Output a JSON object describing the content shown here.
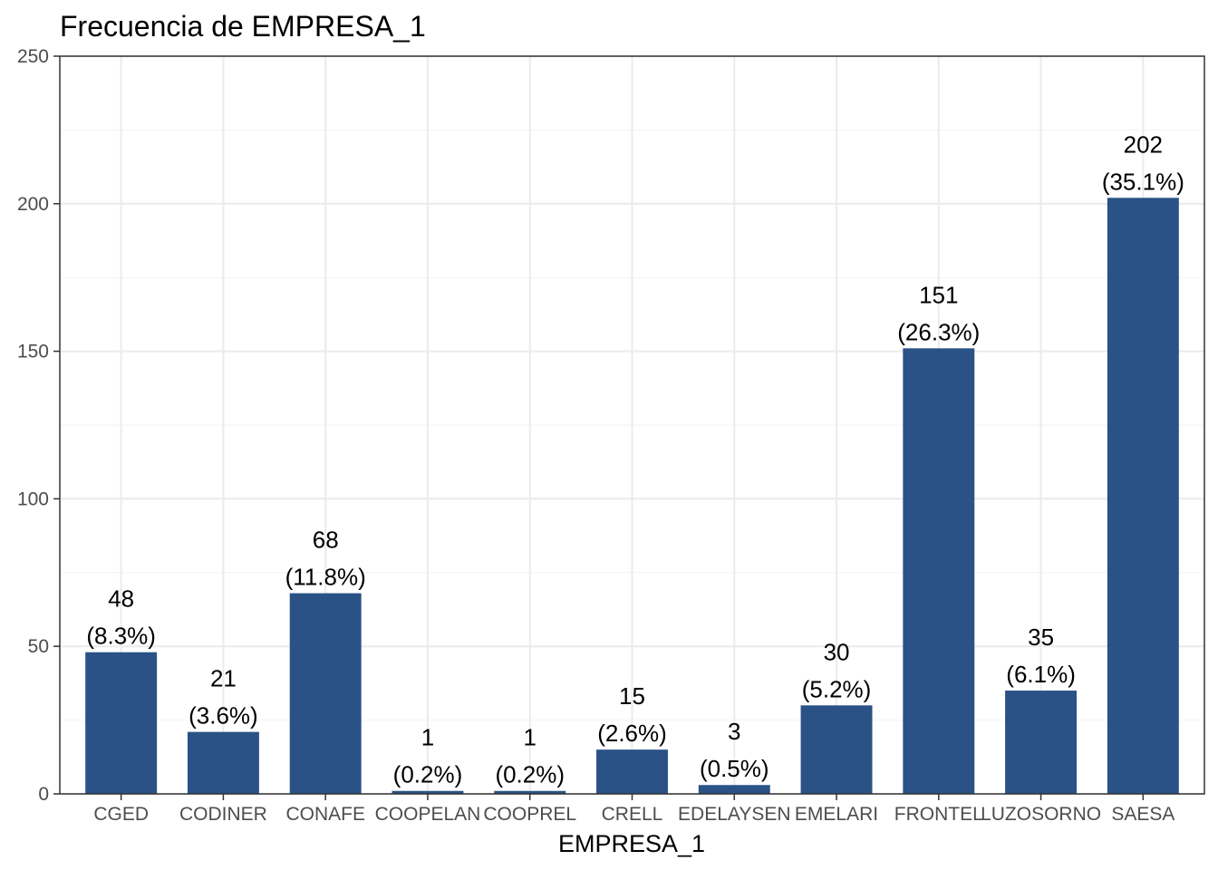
{
  "chart_data": {
    "type": "bar",
    "title": "Frecuencia de EMPRESA_1",
    "xlabel": "EMPRESA_1",
    "ylabel": "",
    "ylim": [
      0,
      250
    ],
    "yticks": [
      0,
      50,
      100,
      150,
      200,
      250
    ],
    "grid": true,
    "categories": [
      "CGED",
      "CODINER",
      "CONAFE",
      "COOPELAN",
      "COOPREL",
      "CRELL",
      "EDELAYSEN",
      "EMELARI",
      "FRONTEL",
      "LUZOSORNO",
      "SAESA"
    ],
    "values": [
      48,
      21,
      68,
      1,
      1,
      15,
      3,
      30,
      151,
      35,
      202
    ],
    "percent_labels": [
      "(8.3%)",
      "(3.6%)",
      "(11.8%)",
      "(0.2%)",
      "(0.2%)",
      "(2.6%)",
      "(0.5%)",
      "(5.2%)",
      "(26.3%)",
      "(6.1%)",
      "(35.1%)"
    ],
    "bar_color": "#2a5286",
    "legend": "none"
  }
}
